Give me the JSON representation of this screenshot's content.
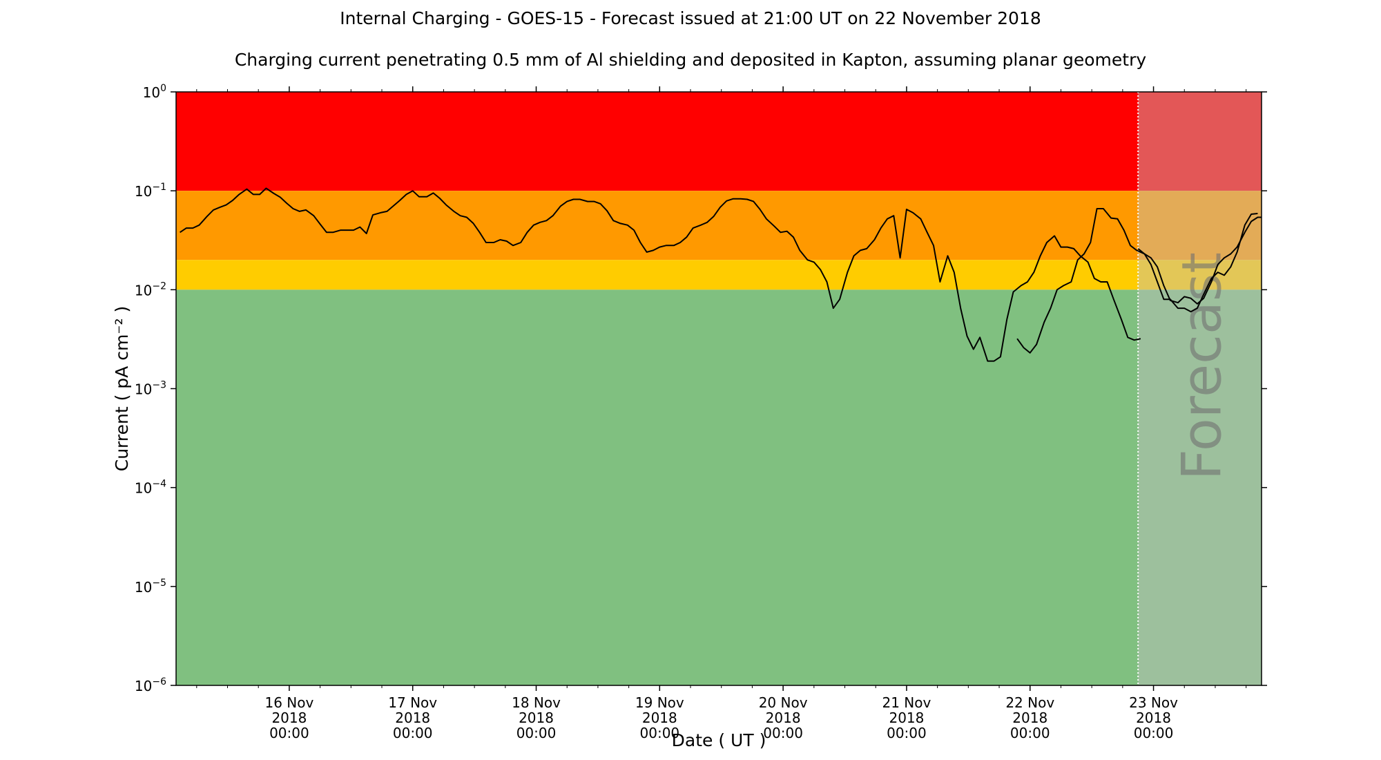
{
  "title": "Internal Charging - GOES-15 - Forecast issued at 21:00 UT on 22 November 2018",
  "subtitle": "Charging current penetrating 0.5 mm of Al shielding and deposited in Kapton, assuming planar geometry",
  "forecast_label": "Forecast",
  "colors": {
    "red": "#ff0000",
    "orange": "#ff9900",
    "yellow": "#ffcc00",
    "green": "#80c080",
    "forecast_overlay": "#c0c0c0",
    "line": "#000000"
  },
  "chart_data": {
    "type": "line",
    "xlabel": "Date ( UT )",
    "ylabel": "Current ( pA cm⁻² )",
    "yscale": "log",
    "ylim": [
      1e-06,
      1
    ],
    "xlim": [
      "2018-11-15 02:00",
      "2018-11-23 21:00"
    ],
    "forecast_start": "2018-11-22 21:00",
    "grid": false,
    "y_ticks": [
      {
        "base": "10",
        "exp": "−6",
        "value": 1e-06
      },
      {
        "base": "10",
        "exp": "−5",
        "value": 1e-05
      },
      {
        "base": "10",
        "exp": "−4",
        "value": 0.0001
      },
      {
        "base": "10",
        "exp": "−3",
        "value": 0.001
      },
      {
        "base": "10",
        "exp": "−2",
        "value": 0.01
      },
      {
        "base": "10",
        "exp": "−1",
        "value": 0.1
      },
      {
        "base": "10",
        "exp": "0",
        "value": 1
      }
    ],
    "x_ticks": [
      {
        "date": "2018-11-16 00:00",
        "label": [
          "16 Nov",
          "2018",
          "00:00"
        ]
      },
      {
        "date": "2018-11-17 00:00",
        "label": [
          "17 Nov",
          "2018",
          "00:00"
        ]
      },
      {
        "date": "2018-11-18 00:00",
        "label": [
          "18 Nov",
          "2018",
          "00:00"
        ]
      },
      {
        "date": "2018-11-19 00:00",
        "label": [
          "19 Nov",
          "2018",
          "00:00"
        ]
      },
      {
        "date": "2018-11-20 00:00",
        "label": [
          "20 Nov",
          "2018",
          "00:00"
        ]
      },
      {
        "date": "2018-11-21 00:00",
        "label": [
          "21 Nov",
          "2018",
          "00:00"
        ]
      },
      {
        "date": "2018-11-22 00:00",
        "label": [
          "22 Nov",
          "2018",
          "00:00"
        ]
      },
      {
        "date": "2018-11-23 00:00",
        "label": [
          "23 Nov",
          "2018",
          "00:00"
        ]
      }
    ],
    "threshold_bands": [
      {
        "from": 0.1,
        "to": 1,
        "color": "#ff0000"
      },
      {
        "from": 0.02,
        "to": 0.1,
        "color": "#ff9900"
      },
      {
        "from": 0.01,
        "to": 0.02,
        "color": "#ffcc00"
      },
      {
        "from": 1e-06,
        "to": 0.01,
        "color": "#80c080"
      }
    ],
    "series": [
      {
        "points": [
          [
            "2018-11-15 02:45",
            0.038
          ],
          [
            "2018-11-15 04:00",
            0.042
          ],
          [
            "2018-11-15 05:15",
            0.042
          ],
          [
            "2018-11-15 06:30",
            0.045
          ],
          [
            "2018-11-15 08:00",
            0.055
          ],
          [
            "2018-11-15 09:15",
            0.064
          ],
          [
            "2018-11-15 10:30",
            0.068
          ],
          [
            "2018-11-15 11:45",
            0.072
          ],
          [
            "2018-11-15 13:00",
            0.08
          ],
          [
            "2018-11-15 14:15",
            0.092
          ],
          [
            "2018-11-15 15:45",
            0.104
          ],
          [
            "2018-11-15 17:00",
            0.092
          ],
          [
            "2018-11-15 18:15",
            0.092
          ],
          [
            "2018-11-15 19:30",
            0.106
          ],
          [
            "2018-11-15 21:00",
            0.094
          ],
          [
            "2018-11-15 22:15",
            0.086
          ],
          [
            "2018-11-15 23:30",
            0.075
          ],
          [
            "2018-11-16 00:45",
            0.066
          ],
          [
            "2018-11-16 02:00",
            0.062
          ],
          [
            "2018-11-16 03:15",
            0.064
          ],
          [
            "2018-11-16 04:45",
            0.056
          ],
          [
            "2018-11-16 06:00",
            0.046
          ],
          [
            "2018-11-16 07:15",
            0.038
          ],
          [
            "2018-11-16 08:30",
            0.038
          ],
          [
            "2018-11-16 10:00",
            0.04
          ],
          [
            "2018-11-16 12:30",
            0.04
          ],
          [
            "2018-11-16 13:45",
            0.043
          ],
          [
            "2018-11-16 15:00",
            0.037
          ],
          [
            "2018-11-16 16:15",
            0.057
          ],
          [
            "2018-11-16 17:45",
            0.06
          ],
          [
            "2018-11-16 19:00",
            0.062
          ],
          [
            "2018-11-16 21:30",
            0.08
          ],
          [
            "2018-11-16 22:45",
            0.092
          ],
          [
            "2018-11-17 00:00",
            0.1
          ],
          [
            "2018-11-17 01:15",
            0.087
          ],
          [
            "2018-11-17 02:45",
            0.087
          ],
          [
            "2018-11-17 04:00",
            0.095
          ],
          [
            "2018-11-17 05:15",
            0.084
          ],
          [
            "2018-11-17 06:30",
            0.072
          ],
          [
            "2018-11-17 08:00",
            0.062
          ],
          [
            "2018-11-17 09:15",
            0.056
          ],
          [
            "2018-11-17 10:30",
            0.054
          ],
          [
            "2018-11-17 11:45",
            0.047
          ],
          [
            "2018-11-17 13:00",
            0.038
          ],
          [
            "2018-11-17 14:15",
            0.03
          ],
          [
            "2018-11-17 15:45",
            0.03
          ],
          [
            "2018-11-17 17:00",
            0.032
          ],
          [
            "2018-11-17 18:15",
            0.031
          ],
          [
            "2018-11-17 19:30",
            0.028
          ],
          [
            "2018-11-17 21:00",
            0.03
          ],
          [
            "2018-11-17 22:15",
            0.038
          ],
          [
            "2018-11-17 23:30",
            0.045
          ],
          [
            "2018-11-18 00:45",
            0.048
          ],
          [
            "2018-11-18 02:00",
            0.05
          ],
          [
            "2018-11-18 03:15",
            0.056
          ],
          [
            "2018-11-18 04:45",
            0.07
          ],
          [
            "2018-11-18 06:00",
            0.078
          ],
          [
            "2018-11-18 07:15",
            0.082
          ],
          [
            "2018-11-18 08:30",
            0.082
          ],
          [
            "2018-11-18 10:00",
            0.078
          ],
          [
            "2018-11-18 11:15",
            0.078
          ],
          [
            "2018-11-18 12:30",
            0.074
          ],
          [
            "2018-11-18 13:45",
            0.063
          ],
          [
            "2018-11-18 15:00",
            0.05
          ],
          [
            "2018-11-18 16:15",
            0.047
          ],
          [
            "2018-11-18 17:45",
            0.045
          ],
          [
            "2018-11-18 19:00",
            0.04
          ],
          [
            "2018-11-18 20:15",
            0.03
          ],
          [
            "2018-11-18 21:30",
            0.024
          ],
          [
            "2018-11-18 22:45",
            0.025
          ],
          [
            "2018-11-19 00:00",
            0.027
          ],
          [
            "2018-11-19 01:15",
            0.028
          ],
          [
            "2018-11-19 02:45",
            0.028
          ],
          [
            "2018-11-19 04:00",
            0.03
          ],
          [
            "2018-11-19 05:15",
            0.034
          ],
          [
            "2018-11-19 06:30",
            0.042
          ],
          [
            "2018-11-19 08:00",
            0.045
          ],
          [
            "2018-11-19 09:15",
            0.048
          ],
          [
            "2018-11-19 10:30",
            0.055
          ],
          [
            "2018-11-19 11:45",
            0.068
          ],
          [
            "2018-11-19 13:00",
            0.079
          ],
          [
            "2018-11-19 14:15",
            0.083
          ],
          [
            "2018-11-19 15:45",
            0.083
          ],
          [
            "2018-11-19 17:00",
            0.082
          ],
          [
            "2018-11-19 18:15",
            0.078
          ],
          [
            "2018-11-19 19:30",
            0.065
          ],
          [
            "2018-11-19 20:45",
            0.052
          ],
          [
            "2018-11-19 22:15",
            0.044
          ],
          [
            "2018-11-19 23:30",
            0.038
          ],
          [
            "2018-11-20 00:45",
            0.039
          ],
          [
            "2018-11-20 02:00",
            0.034
          ],
          [
            "2018-11-20 03:15",
            0.025
          ],
          [
            "2018-11-20 04:45",
            0.02
          ],
          [
            "2018-11-20 06:00",
            0.019
          ],
          [
            "2018-11-20 07:15",
            0.016
          ],
          [
            "2018-11-20 08:30",
            0.012
          ],
          [
            "2018-11-20 09:45",
            0.0065
          ],
          [
            "2018-11-20 11:00",
            0.008
          ],
          [
            "2018-11-20 12:30",
            0.015
          ],
          [
            "2018-11-20 13:45",
            0.022
          ],
          [
            "2018-11-20 15:00",
            0.025
          ],
          [
            "2018-11-20 16:15",
            0.026
          ],
          [
            "2018-11-20 17:45",
            0.032
          ],
          [
            "2018-11-20 19:00",
            0.042
          ],
          [
            "2018-11-20 20:15",
            0.052
          ],
          [
            "2018-11-20 21:30",
            0.056
          ],
          [
            "2018-11-20 22:45",
            0.021
          ],
          [
            "2018-11-21 00:00",
            0.065
          ],
          [
            "2018-11-21 01:15",
            0.06
          ],
          [
            "2018-11-21 02:45",
            0.052
          ],
          [
            "2018-11-21 04:00",
            0.038
          ],
          [
            "2018-11-21 05:15",
            0.028
          ],
          [
            "2018-11-21 06:30",
            0.012
          ],
          [
            "2018-11-21 08:00",
            0.022
          ],
          [
            "2018-11-21 09:15",
            0.015
          ],
          [
            "2018-11-21 10:30",
            0.0065
          ],
          [
            "2018-11-21 11:45",
            0.0034
          ],
          [
            "2018-11-21 13:00",
            0.0025
          ],
          [
            "2018-11-21 14:15",
            0.0033
          ],
          [
            "2018-11-21 15:45",
            0.0019
          ],
          [
            "2018-11-21 17:00",
            0.0019
          ],
          [
            "2018-11-21 18:15",
            0.0021
          ],
          [
            "2018-11-21 19:30",
            0.005
          ],
          [
            "2018-11-21 20:45",
            0.0095
          ],
          [
            "2018-11-21 22:15",
            0.011
          ],
          [
            "2018-11-21 23:30",
            0.012
          ],
          [
            "2018-11-22 00:45",
            0.015
          ],
          [
            "2018-11-22 02:00",
            0.022
          ],
          [
            "2018-11-22 03:15",
            0.03
          ],
          [
            "2018-11-22 04:45",
            0.035
          ],
          [
            "2018-11-22 06:00",
            0.027
          ],
          [
            "2018-11-22 07:15",
            0.027
          ],
          [
            "2018-11-22 08:30",
            0.026
          ],
          [
            "2018-11-22 09:45",
            0.022
          ],
          [
            "2018-11-22 11:15",
            0.019
          ],
          [
            "2018-11-22 12:30",
            0.013
          ],
          [
            "2018-11-22 13:45",
            0.012
          ],
          [
            "2018-11-22 15:00",
            0.012
          ],
          [
            "2018-11-22 16:15",
            0.008
          ],
          [
            "2018-11-22 17:45",
            0.005
          ],
          [
            "2018-11-22 19:00",
            0.0033
          ],
          [
            "2018-11-22 20:15",
            0.0031
          ],
          [
            "2018-11-22 21:30",
            0.0032
          ]
        ]
      },
      {
        "points": [
          [
            "2018-11-21 21:30",
            0.0032
          ],
          [
            "2018-11-21 22:45",
            0.0026
          ],
          [
            "2018-11-22 00:00",
            0.0023
          ],
          [
            "2018-11-22 01:15",
            0.0028
          ],
          [
            "2018-11-22 02:45",
            0.0047
          ],
          [
            "2018-11-22 04:00",
            0.0065
          ],
          [
            "2018-11-22 05:15",
            0.01
          ],
          [
            "2018-11-22 06:30",
            0.011
          ],
          [
            "2018-11-22 08:00",
            0.012
          ],
          [
            "2018-11-22 09:15",
            0.02
          ],
          [
            "2018-11-22 10:30",
            0.023
          ],
          [
            "2018-11-22 11:45",
            0.03
          ],
          [
            "2018-11-22 13:00",
            0.066
          ],
          [
            "2018-11-22 14:15",
            0.066
          ],
          [
            "2018-11-22 15:45",
            0.053
          ],
          [
            "2018-11-22 17:00",
            0.052
          ],
          [
            "2018-11-22 18:15",
            0.04
          ],
          [
            "2018-11-22 19:30",
            0.028
          ],
          [
            "2018-11-22 20:45",
            0.025
          ],
          [
            "2018-11-22 22:15",
            0.023
          ],
          [
            "2018-11-22 23:30",
            0.018
          ],
          [
            "2018-11-23 00:45",
            0.012
          ],
          [
            "2018-11-23 02:00",
            0.008
          ],
          [
            "2018-11-23 03:15",
            0.008
          ],
          [
            "2018-11-23 04:45",
            0.0065
          ],
          [
            "2018-11-23 06:00",
            0.0065
          ],
          [
            "2018-11-23 07:15",
            0.006
          ],
          [
            "2018-11-23 08:30",
            0.0065
          ],
          [
            "2018-11-23 09:45",
            0.009
          ],
          [
            "2018-11-23 11:15",
            0.013
          ],
          [
            "2018-11-23 12:30",
            0.015
          ],
          [
            "2018-11-23 13:45",
            0.014
          ],
          [
            "2018-11-23 15:00",
            0.017
          ],
          [
            "2018-11-23 16:15",
            0.024
          ],
          [
            "2018-11-23 17:45",
            0.045
          ],
          [
            "2018-11-23 19:00",
            0.058
          ],
          [
            "2018-11-23 20:15",
            0.059
          ]
        ]
      },
      {
        "points": [
          [
            "2018-11-22 21:00",
            0.026
          ],
          [
            "2018-11-22 22:15",
            0.023
          ],
          [
            "2018-11-22 23:30",
            0.021
          ],
          [
            "2018-11-23 00:45",
            0.017
          ],
          [
            "2018-11-23 02:00",
            0.011
          ],
          [
            "2018-11-23 03:15",
            0.0078
          ],
          [
            "2018-11-23 04:45",
            0.0074
          ],
          [
            "2018-11-23 06:00",
            0.0085
          ],
          [
            "2018-11-23 07:15",
            0.0082
          ],
          [
            "2018-11-23 08:30",
            0.0072
          ],
          [
            "2018-11-23 09:45",
            0.0082
          ],
          [
            "2018-11-23 11:15",
            0.012
          ],
          [
            "2018-11-23 12:30",
            0.018
          ],
          [
            "2018-11-23 13:45",
            0.021
          ],
          [
            "2018-11-23 15:00",
            0.023
          ],
          [
            "2018-11-23 16:15",
            0.027
          ],
          [
            "2018-11-23 17:45",
            0.038
          ],
          [
            "2018-11-23 19:00",
            0.049
          ],
          [
            "2018-11-23 20:15",
            0.054
          ],
          [
            "2018-11-23 21:00",
            0.054
          ]
        ]
      }
    ]
  }
}
